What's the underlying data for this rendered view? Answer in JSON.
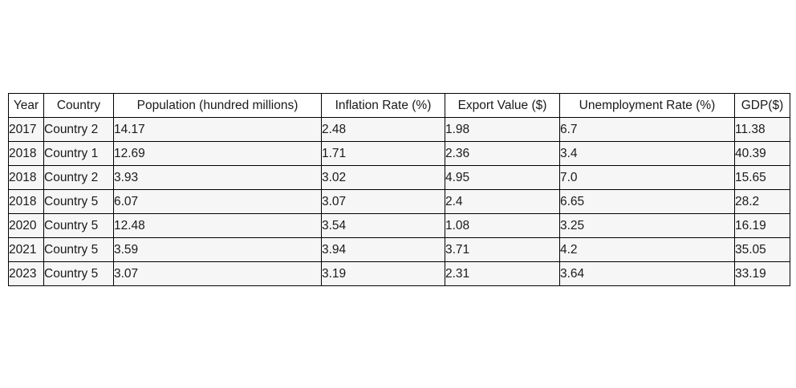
{
  "chart_data": {
    "type": "table",
    "columns": [
      "Year",
      "Country",
      "Population (hundred millions)",
      "Inflation Rate (%)",
      "Export Value ($)",
      "Unemployment Rate (%)",
      "GDP($)"
    ],
    "rows": [
      [
        "2017",
        "Country 2",
        "14.17",
        "2.48",
        "1.98",
        "6.7",
        "11.38"
      ],
      [
        "2018",
        "Country 1",
        "12.69",
        "1.71",
        "2.36",
        "3.4",
        "40.39"
      ],
      [
        "2018",
        "Country 2",
        "3.93",
        "3.02",
        "4.95",
        "7.0",
        "15.65"
      ],
      [
        "2018",
        "Country 5",
        "6.07",
        "3.07",
        "2.4",
        "6.65",
        "28.2"
      ],
      [
        "2020",
        "Country 5",
        "12.48",
        "3.54",
        "1.08",
        "3.25",
        "16.19"
      ],
      [
        "2021",
        "Country 5",
        "3.59",
        "3.94",
        "3.71",
        "4.2",
        "35.05"
      ],
      [
        "2023",
        "Country 5",
        "3.07",
        "3.19",
        "2.31",
        "3.64",
        "33.19"
      ]
    ],
    "colors": {
      "header_background": "#ffffff",
      "cell_background": "#f6f6f6",
      "border": "#000000",
      "text": "#1a1a1a"
    }
  }
}
